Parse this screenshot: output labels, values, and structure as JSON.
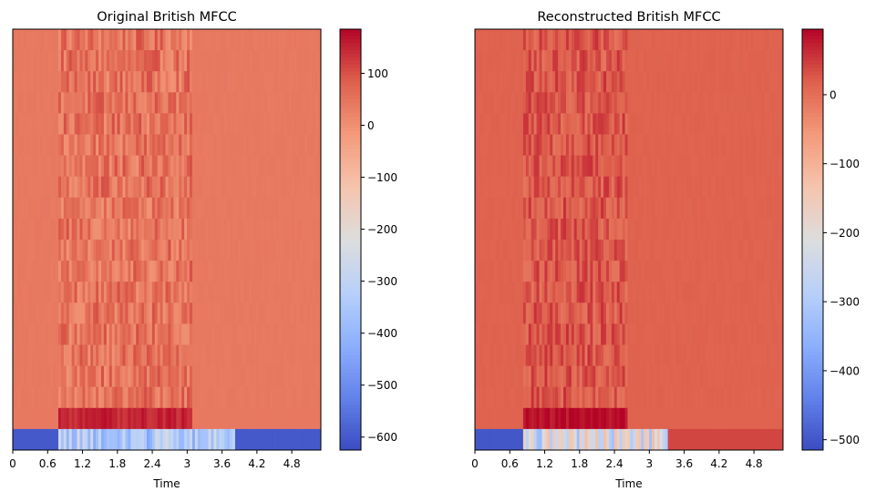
{
  "chart_data": [
    {
      "type": "heatmap",
      "title": "Original British MFCC",
      "xlabel": "Time",
      "x_ticks": [
        "0",
        "0.6",
        "1.2",
        "1.8",
        "2.4",
        "3",
        "3.6",
        "4.2",
        "4.8"
      ],
      "x_tick_values": [
        0,
        0.6,
        1.2,
        1.8,
        2.4,
        3.0,
        3.6,
        4.2,
        4.8
      ],
      "xlim": [
        0,
        5.3
      ],
      "n_coefficients": 20,
      "colormap": "coolwarm",
      "colorbar": {
        "vmin": -625,
        "vmax": 185,
        "ticks": [
          100,
          0,
          -100,
          -200,
          -300,
          -400,
          -500,
          -600
        ],
        "tick_labels": [
          "100",
          "0",
          "−100",
          "−200",
          "−300",
          "−400",
          "−500",
          "−600"
        ]
      },
      "approx_values": {
        "silence_value": 40,
        "silence_c0": -600,
        "speech_start": 0.75,
        "speech_end": 3.05,
        "c0_speech_end": 3.8,
        "c0_speech": -340,
        "c1_speech": 150,
        "c1_after_speech": 40,
        "upper_speech_mean": 50,
        "upper_speech_spread": 55
      }
    },
    {
      "type": "heatmap",
      "title": "Reconstructed British MFCC",
      "xlabel": "Time",
      "x_ticks": [
        "0",
        "0.6",
        "1.2",
        "1.8",
        "2.4",
        "3",
        "3.6",
        "4.2",
        "4.8"
      ],
      "x_tick_values": [
        0,
        0.6,
        1.2,
        1.8,
        2.4,
        3.0,
        3.6,
        4.2,
        4.8
      ],
      "xlim": [
        0,
        5.3
      ],
      "n_coefficients": 20,
      "colormap": "coolwarm",
      "colorbar": {
        "vmin": -515,
        "vmax": 95,
        "ticks": [
          0,
          -100,
          -200,
          -300,
          -400,
          -500
        ],
        "tick_labels": [
          "0",
          "−100",
          "−200",
          "−300",
          "−400",
          "−500"
        ]
      },
      "approx_values": {
        "silence_value": 15,
        "silence_c0": -500,
        "speech_start": 0.8,
        "speech_end": 2.6,
        "c0_speech_end": 3.3,
        "c0_after": 40,
        "c0_speech": -230,
        "c1_speech": 90,
        "upper_speech_mean": 25,
        "upper_speech_spread": 35
      }
    }
  ]
}
